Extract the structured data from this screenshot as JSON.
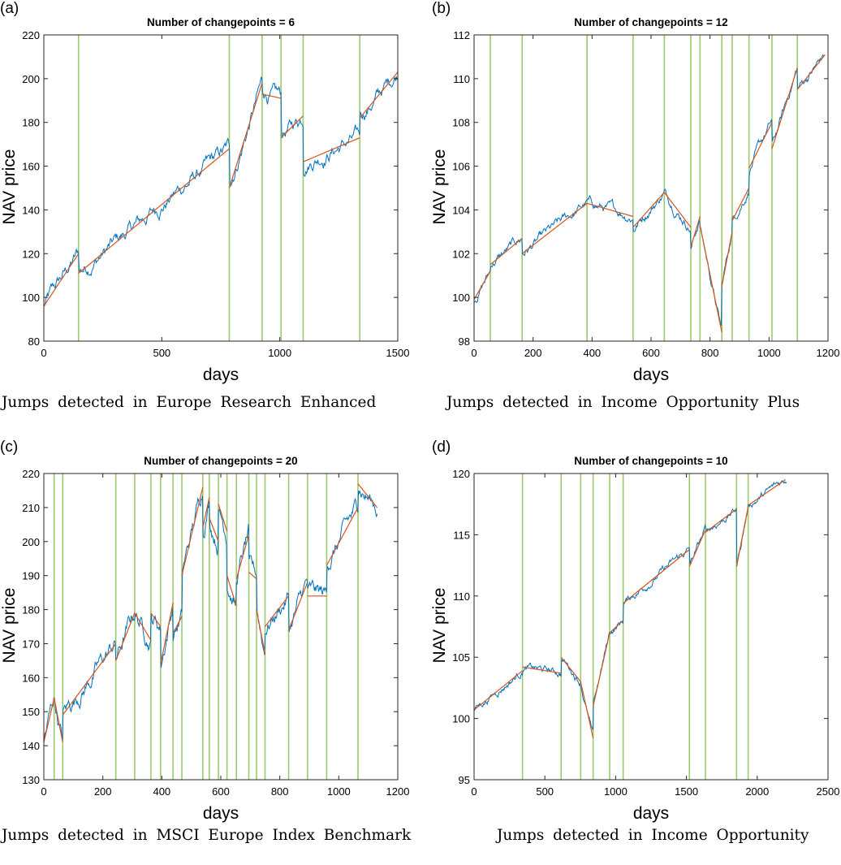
{
  "chart_data": [
    {
      "type": "line",
      "label": "(a)",
      "title": "Number of changepoints = 6",
      "xlabel": "days",
      "ylabel": "NAV price",
      "caption": "Jumps detected in Europe Research Enhanced",
      "xlim": [
        0,
        1500
      ],
      "ylim": [
        80,
        220
      ],
      "xticks": [
        0,
        500,
        1000,
        1500
      ],
      "yticks": [
        80,
        100,
        120,
        140,
        160,
        180,
        200,
        220
      ],
      "changepoints": [
        147,
        786,
        925,
        1005,
        1099,
        1339
      ],
      "fit_segments": [
        [
          0,
          96,
          147,
          120
        ],
        [
          147,
          111,
          786,
          168
        ],
        [
          786,
          150,
          925,
          198
        ],
        [
          925,
          193,
          1005,
          191
        ],
        [
          1005,
          173,
          1099,
          183
        ],
        [
          1099,
          162,
          1339,
          173
        ],
        [
          1339,
          182,
          1500,
          203
        ]
      ],
      "series_end": 1500,
      "noise_amplitude": 4.5,
      "colors": {
        "series": "#0072BD",
        "fit": "#D95319",
        "changepoint": "#9DC96F"
      }
    },
    {
      "type": "line",
      "label": "(b)",
      "title": "Number of changepoints = 12",
      "xlabel": "days",
      "ylabel": "NAV price",
      "caption": "Jumps detected in Income Opportunity Plus",
      "xlim": [
        0,
        1200
      ],
      "ylim": [
        98,
        112
      ],
      "xticks": [
        0,
        200,
        400,
        600,
        800,
        1000,
        1200
      ],
      "yticks": [
        98,
        100,
        102,
        104,
        106,
        108,
        110,
        112
      ],
      "changepoints": [
        55,
        163,
        383,
        539,
        645,
        735,
        766,
        840,
        875,
        932,
        1010,
        1096
      ],
      "fit_segments": [
        [
          0,
          99.9,
          55,
          101.2
        ],
        [
          55,
          101.5,
          163,
          102.7
        ],
        [
          163,
          102,
          383,
          104.3
        ],
        [
          383,
          104.3,
          539,
          103.7
        ],
        [
          539,
          103.2,
          645,
          104.8
        ],
        [
          645,
          104.8,
          735,
          103.2
        ],
        [
          735,
          102.3,
          766,
          103.7
        ],
        [
          766,
          103.3,
          840,
          98.4
        ],
        [
          840,
          100.5,
          875,
          103
        ],
        [
          875,
          103.5,
          932,
          105
        ],
        [
          932,
          105.9,
          1010,
          108
        ],
        [
          1010,
          106.8,
          1096,
          110.5
        ],
        [
          1096,
          109.5,
          1190,
          111.1
        ]
      ],
      "series_end": 1190,
      "noise_amplitude": 0.3,
      "colors": {
        "series": "#0072BD",
        "fit": "#D95319",
        "changepoint": "#9DC96F"
      }
    },
    {
      "type": "line",
      "label": "(c)",
      "title": "Number of changepoints = 20",
      "xlabel": "days",
      "ylabel": "NAV price",
      "caption": "Jumps detected in MSCI Europe Index Benchmark",
      "xlim": [
        0,
        1200
      ],
      "ylim": [
        130,
        220
      ],
      "xticks": [
        0,
        200,
        400,
        600,
        800,
        1000,
        1200
      ],
      "yticks": [
        130,
        140,
        150,
        160,
        170,
        180,
        190,
        200,
        210,
        220
      ],
      "changepoints": [
        35,
        64,
        244,
        308,
        363,
        396,
        438,
        468,
        539,
        561,
        592,
        621,
        653,
        695,
        721,
        750,
        830,
        894,
        959,
        1065
      ],
      "fit_segments": [
        [
          0,
          141,
          35,
          154
        ],
        [
          35,
          154,
          64,
          141
        ],
        [
          64,
          149,
          244,
          170
        ],
        [
          244,
          165,
          308,
          179
        ],
        [
          308,
          179,
          363,
          171
        ],
        [
          363,
          179,
          396,
          175
        ],
        [
          396,
          164,
          438,
          182
        ],
        [
          438,
          173,
          468,
          178
        ],
        [
          468,
          190,
          539,
          216
        ],
        [
          539,
          204,
          561,
          213
        ],
        [
          561,
          207,
          592,
          200
        ],
        [
          592,
          211,
          621,
          203
        ],
        [
          621,
          190,
          653,
          181
        ],
        [
          653,
          189,
          695,
          202
        ],
        [
          695,
          191,
          721,
          189
        ],
        [
          721,
          180,
          750,
          167
        ],
        [
          750,
          175,
          830,
          184
        ],
        [
          830,
          174,
          894,
          188
        ],
        [
          894,
          184,
          959,
          184
        ],
        [
          959,
          193,
          1065,
          210
        ],
        [
          1065,
          217,
          1130,
          210
        ]
      ],
      "series_end": 1130,
      "noise_amplitude": 3.5,
      "colors": {
        "series": "#0072BD",
        "fit": "#D95319",
        "changepoint": "#9DC96F"
      }
    },
    {
      "type": "line",
      "label": "(d)",
      "title": "Number of changepoints = 10",
      "xlabel": "days",
      "ylabel": "NAV price",
      "caption": "Jumps detected in Income Opportunity",
      "xlim": [
        0,
        2500
      ],
      "ylim": [
        95,
        120
      ],
      "xticks": [
        0,
        500,
        1000,
        1500,
        2000,
        2500
      ],
      "yticks": [
        95,
        100,
        105,
        110,
        115,
        120
      ],
      "changepoints": [
        342,
        615,
        753,
        841,
        958,
        1053,
        1521,
        1634,
        1854,
        1936
      ],
      "fit_segments": [
        [
          0,
          100.7,
          342,
          103.9
        ],
        [
          342,
          104.2,
          615,
          103.7
        ],
        [
          615,
          105,
          753,
          103
        ],
        [
          753,
          103,
          841,
          98.4
        ],
        [
          841,
          101,
          958,
          107
        ],
        [
          958,
          107,
          1053,
          108
        ],
        [
          1053,
          109.4,
          1521,
          113.8
        ],
        [
          1521,
          112.4,
          1634,
          115.4
        ],
        [
          1634,
          115.2,
          1854,
          117.1
        ],
        [
          1854,
          112.4,
          1936,
          117.3
        ],
        [
          1936,
          117.4,
          2200,
          119.5
        ]
      ],
      "series_end": 2210,
      "noise_amplitude": 0.4,
      "colors": {
        "series": "#0072BD",
        "fit": "#D95319",
        "changepoint": "#9DC96F"
      }
    }
  ]
}
